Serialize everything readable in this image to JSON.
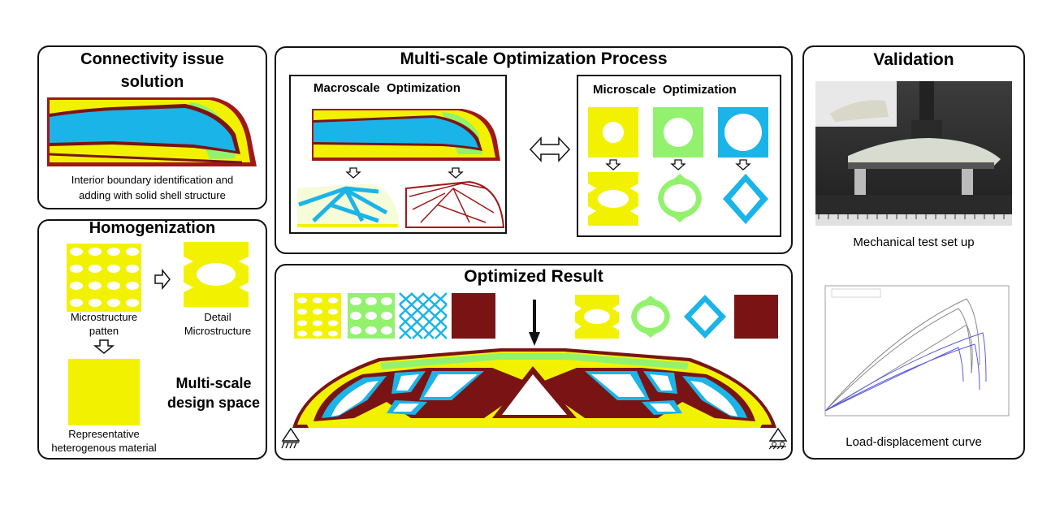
{
  "colors": {
    "yellow": "#f2f200",
    "green": "#92f26e",
    "blue": "#1ab4e8",
    "maroon": "#7a1414",
    "dark_red": "#a01818"
  },
  "connectivity": {
    "title_line1": "Connectivity issue",
    "title_line2": "solution",
    "caption_line1": "Interior boundary identification and",
    "caption_line2": "adding with solid shell structure"
  },
  "homogenization": {
    "title": "Homogenization",
    "micro_caption_line1": "Microstructure",
    "micro_caption_line2": "patten",
    "detail_caption_line1": "Detail",
    "detail_caption_line2": "Microstructure",
    "rep_caption_line1": "Representative",
    "rep_caption_line2": "heterogenous material",
    "multi_line1": "Multi-scale",
    "multi_line2": "design space"
  },
  "process": {
    "title": "Multi-scale Optimization Process",
    "macro_label": "Macroscale  Optimization",
    "micro_label": "Microscale  Optimization"
  },
  "result": {
    "title": "Optimized Result"
  },
  "validation": {
    "title": "Validation",
    "photo_caption": "Mechanical test set up",
    "curve_caption": "Load-displacement curve"
  }
}
